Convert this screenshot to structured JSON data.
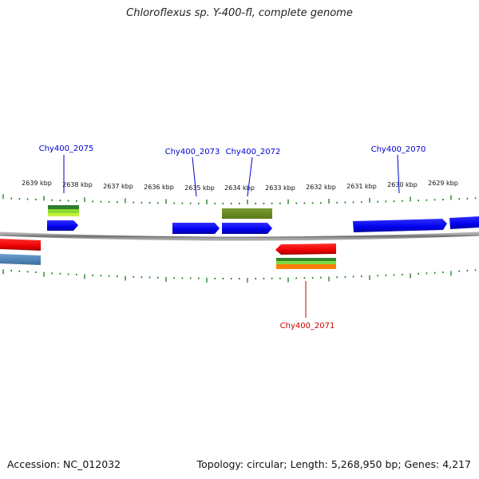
{
  "title": "Chloroflexus sp. Y-400-fl, complete genome",
  "footer": {
    "accession": "Accession: NC_012032",
    "summary": "Topology: circular; Length: 5,268,950 bp; Genes: 4,217"
  },
  "scale_labels": [
    {
      "text": "2639 kbp",
      "kbp": 2639
    },
    {
      "text": "2638 kbp",
      "kbp": 2638
    },
    {
      "text": "2637 kbp",
      "kbp": 2637
    },
    {
      "text": "2636 kbp",
      "kbp": 2636
    },
    {
      "text": "2635 kbp",
      "kbp": 2635
    },
    {
      "text": "2634 kbp",
      "kbp": 2634
    },
    {
      "text": "2633 kbp",
      "kbp": 2633
    },
    {
      "text": "2632 kbp",
      "kbp": 2632
    },
    {
      "text": "2631 kbp",
      "kbp": 2631
    },
    {
      "text": "2630 kbp",
      "kbp": 2630
    },
    {
      "text": "2629 kbp",
      "kbp": 2629
    }
  ],
  "gene_labels": [
    {
      "text": "Chy400_2075",
      "strand": "forward",
      "color": "#0000cc"
    },
    {
      "text": "Chy400_2073",
      "strand": "forward",
      "color": "#0000cc"
    },
    {
      "text": "Chy400_2072",
      "strand": "forward",
      "color": "#0000cc"
    },
    {
      "text": "Chy400_2070",
      "strand": "forward",
      "color": "#0000cc"
    },
    {
      "text": "Chy400_2071",
      "strand": "reverse",
      "color": "#cc0000"
    }
  ],
  "colors": {
    "cds_forward": "#0000ff",
    "cds_reverse": "#ff0000",
    "backbone": "#808080",
    "ticks": "#1a7a1a",
    "feature_dark_green": "#2e7d32",
    "feature_light_green": "#a6e22e",
    "feature_olive": "#6b8e23",
    "feature_orange": "#ff8000",
    "feature_steel_blue": "#4682b4"
  }
}
